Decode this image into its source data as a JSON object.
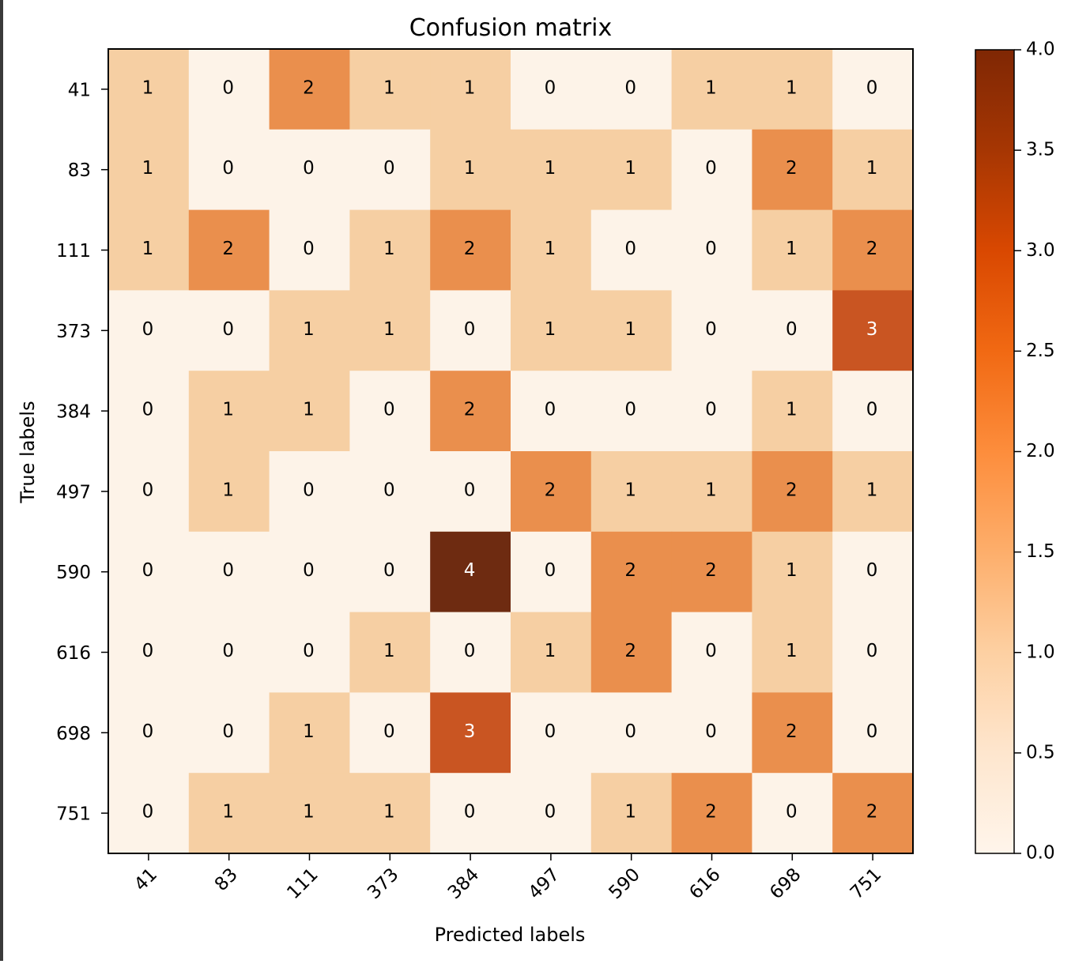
{
  "chart_data": {
    "type": "heatmap",
    "title": "Confusion matrix",
    "xlabel": "Predicted labels",
    "ylabel": "True labels",
    "x_categories": [
      "41",
      "83",
      "111",
      "373",
      "384",
      "497",
      "590",
      "616",
      "698",
      "751"
    ],
    "y_categories": [
      "41",
      "83",
      "111",
      "373",
      "384",
      "497",
      "590",
      "616",
      "698",
      "751"
    ],
    "values": [
      [
        1,
        0,
        2,
        1,
        1,
        0,
        0,
        1,
        1,
        0
      ],
      [
        1,
        0,
        0,
        0,
        1,
        1,
        1,
        0,
        2,
        1
      ],
      [
        1,
        2,
        0,
        1,
        2,
        1,
        0,
        0,
        1,
        2
      ],
      [
        0,
        0,
        1,
        1,
        0,
        1,
        1,
        0,
        0,
        3
      ],
      [
        0,
        1,
        1,
        0,
        2,
        0,
        0,
        0,
        1,
        0
      ],
      [
        0,
        1,
        0,
        0,
        0,
        2,
        1,
        1,
        2,
        1
      ],
      [
        0,
        0,
        0,
        0,
        4,
        0,
        2,
        2,
        1,
        0
      ],
      [
        0,
        0,
        0,
        1,
        0,
        1,
        2,
        0,
        1,
        0
      ],
      [
        0,
        0,
        1,
        0,
        3,
        0,
        0,
        0,
        2,
        0
      ],
      [
        0,
        1,
        1,
        1,
        0,
        0,
        1,
        2,
        0,
        2
      ]
    ],
    "colormap": "Oranges",
    "value_range": [
      0,
      4
    ],
    "colorbar_ticks": [
      "0.0",
      "0.5",
      "1.0",
      "1.5",
      "2.0",
      "2.5",
      "3.0",
      "3.5",
      "4.0"
    ],
    "colors": {
      "0": "#fdf3e8",
      "1": "#f6cfa3",
      "2": "#ea8f4d",
      "3": "#c95522",
      "4": "#6e2b11"
    },
    "grid": false
  }
}
